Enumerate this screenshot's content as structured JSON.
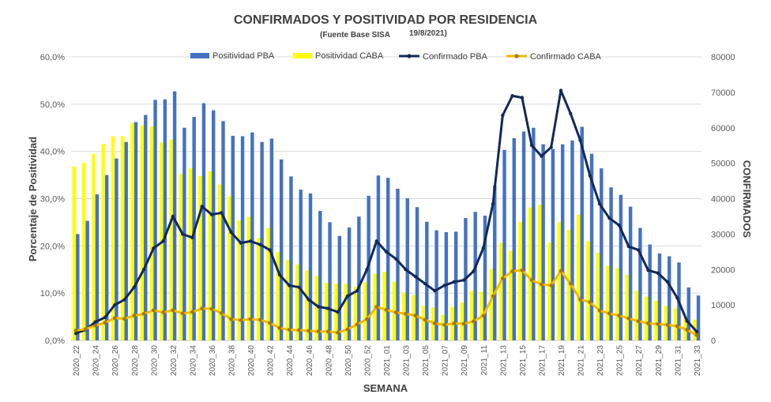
{
  "chart_data": {
    "type": "bar",
    "title": "CONFIRMADOS Y POSITIVIDAD POR RESIDENCIA",
    "subtitle_source": "(Fuente Base SISA",
    "subtitle_date": "19/8/2021)",
    "xlabel": "SEMANA",
    "ylabel": "Porcentaje de Positividad",
    "y2label": "CONFIRMADOS",
    "ylim": [
      0,
      60
    ],
    "y2lim": [
      0,
      80000
    ],
    "y_ticks": [
      "0,0%",
      "10,0%",
      "20,0%",
      "30,0%",
      "40,0%",
      "50,0%",
      "60,0%"
    ],
    "y2_ticks": [
      "0",
      "10000",
      "20000",
      "30000",
      "40000",
      "50000",
      "60000",
      "70000",
      "80000"
    ],
    "grid": "horizontal",
    "legend_position": "top",
    "colors": {
      "bar_pba": "#4472c4",
      "bar_caba": "#ffff00",
      "line_pba": "#13285a",
      "line_caba": "#f2b800",
      "marker_caba": "#a07a00"
    },
    "categories": [
      "2020_22",
      "2020_23",
      "2020_24",
      "2020_25",
      "2020_26",
      "2020_27",
      "2020_28",
      "2020_29",
      "2020_30",
      "2020_31",
      "2020_32",
      "2020_33",
      "2020_34",
      "2020_35",
      "2020_36",
      "2020_37",
      "2020_38",
      "2020_39",
      "2020_40",
      "2020_41",
      "2020_42",
      "2020_43",
      "2020_44",
      "2020_45",
      "2020_46",
      "2020_47",
      "2020_48",
      "2020_49",
      "2020_50",
      "2020_51",
      "2020_52",
      "2020_53",
      "2021_01",
      "2021_02",
      "2021_03",
      "2021_04",
      "2021_05",
      "2021_06",
      "2021_07",
      "2021_08",
      "2021_09",
      "2021_10",
      "2021_11",
      "2021_12",
      "2021_13",
      "2021_14",
      "2021_15",
      "2021_16",
      "2021_17",
      "2021_18",
      "2021_19",
      "2021_20",
      "2021_21",
      "2021_22",
      "2021_23",
      "2021_24",
      "2021_25",
      "2021_26",
      "2021_27",
      "2021_28",
      "2021_29",
      "2021_30",
      "2021_31",
      "2021_32",
      "2021_33"
    ],
    "x_tick_labels": [
      "2020_22",
      "2020_24",
      "2020_26",
      "2020_28",
      "2020_30",
      "2020_32",
      "2020_34",
      "2020_36",
      "2020_38",
      "2020_40",
      "2020_42",
      "2020_44",
      "2020_46",
      "2020_48",
      "2020_50",
      "2020_52",
      "2021_01",
      "2021_03",
      "2021_05",
      "2021_07",
      "2021_09",
      "2021_11",
      "2021_13",
      "2021_15",
      "2021_17",
      "2021_19",
      "2021_21",
      "2021_23",
      "2021_25",
      "2021_27",
      "2021_29",
      "2021_31",
      "2021_33"
    ],
    "series": [
      {
        "name": "Positividad PBA",
        "kind": "bar",
        "axis": "left",
        "values": [
          22.5,
          25.3,
          30.9,
          35.0,
          38.5,
          42.0,
          46.2,
          47.7,
          50.9,
          51.0,
          52.7,
          45.0,
          47.3,
          50.2,
          48.7,
          46.4,
          43.3,
          43.2,
          44.0,
          42.0,
          42.7,
          38.3,
          34.7,
          31.9,
          31.1,
          27.4,
          25.0,
          22.1,
          23.9,
          26.2,
          30.6,
          34.9,
          34.4,
          32.1,
          30.1,
          28.2,
          25.1,
          23.3,
          22.9,
          23.0,
          25.9,
          27.2,
          26.4,
          32.8,
          40.3,
          42.8,
          44.2,
          45.0,
          41.5,
          40.5,
          41.5,
          42.3,
          45.2,
          39.5,
          36.4,
          32.4,
          30.8,
          28.3,
          23.8,
          20.3,
          18.4,
          17.8,
          16.5,
          11.2,
          9.5
        ]
      },
      {
        "name": "Positividad CABA",
        "kind": "bar",
        "axis": "left",
        "values": [
          36.8,
          37.6,
          39.5,
          41.6,
          43.2,
          43.2,
          46.0,
          45.5,
          45.3,
          41.9,
          42.5,
          35.3,
          36.4,
          34.8,
          35.8,
          33.0,
          30.5,
          25.4,
          26.2,
          21.7,
          23.8,
          18.7,
          17.0,
          16.1,
          14.8,
          13.6,
          12.2,
          12.0,
          12.0,
          11.4,
          12.3,
          14.1,
          14.5,
          12.4,
          10.1,
          9.6,
          7.3,
          7.0,
          5.4,
          7.1,
          8.0,
          10.5,
          10.3,
          15.1,
          20.6,
          19.0,
          25.1,
          28.1,
          28.7,
          20.7,
          25.0,
          23.4,
          26.6,
          21.0,
          18.5,
          15.8,
          15.3,
          13.9,
          10.5,
          9.3,
          8.4,
          7.3,
          6.8,
          4.9,
          4.4
        ]
      },
      {
        "name": "Confirmado PBA",
        "kind": "line",
        "axis": "right",
        "values": [
          2000,
          3000,
          5200,
          6500,
          10000,
          11500,
          15000,
          20000,
          26000,
          28000,
          35000,
          30000,
          29000,
          37800,
          35500,
          36000,
          30500,
          27500,
          28000,
          27000,
          25500,
          18500,
          15500,
          15000,
          11500,
          9500,
          9000,
          8000,
          12500,
          14000,
          20000,
          28000,
          25000,
          23000,
          20000,
          18000,
          16000,
          14000,
          15500,
          16500,
          17000,
          19500,
          26000,
          38500,
          63500,
          69000,
          68500,
          55000,
          52000,
          54500,
          70500,
          64000,
          56500,
          46500,
          38500,
          34500,
          32500,
          26500,
          25500,
          19800,
          19000,
          16500,
          12000,
          5500,
          2500
        ]
      },
      {
        "name": "Confirmado CABA",
        "kind": "line",
        "axis": "right",
        "values": [
          2800,
          3200,
          4200,
          5000,
          6300,
          6100,
          7000,
          7500,
          8500,
          7900,
          8500,
          7600,
          8000,
          9000,
          8900,
          7700,
          6000,
          5700,
          6000,
          5800,
          4900,
          3500,
          3000,
          2900,
          2700,
          2500,
          2500,
          2200,
          3100,
          4500,
          6000,
          9500,
          8600,
          7900,
          7500,
          7000,
          5800,
          4800,
          4400,
          4800,
          4700,
          5400,
          7000,
          12500,
          17500,
          19500,
          19800,
          17000,
          15800,
          15500,
          19600,
          16000,
          11500,
          10800,
          8400,
          7600,
          7000,
          6200,
          5400,
          4800,
          4600,
          4400,
          4000,
          3000,
          1500
        ]
      }
    ]
  }
}
